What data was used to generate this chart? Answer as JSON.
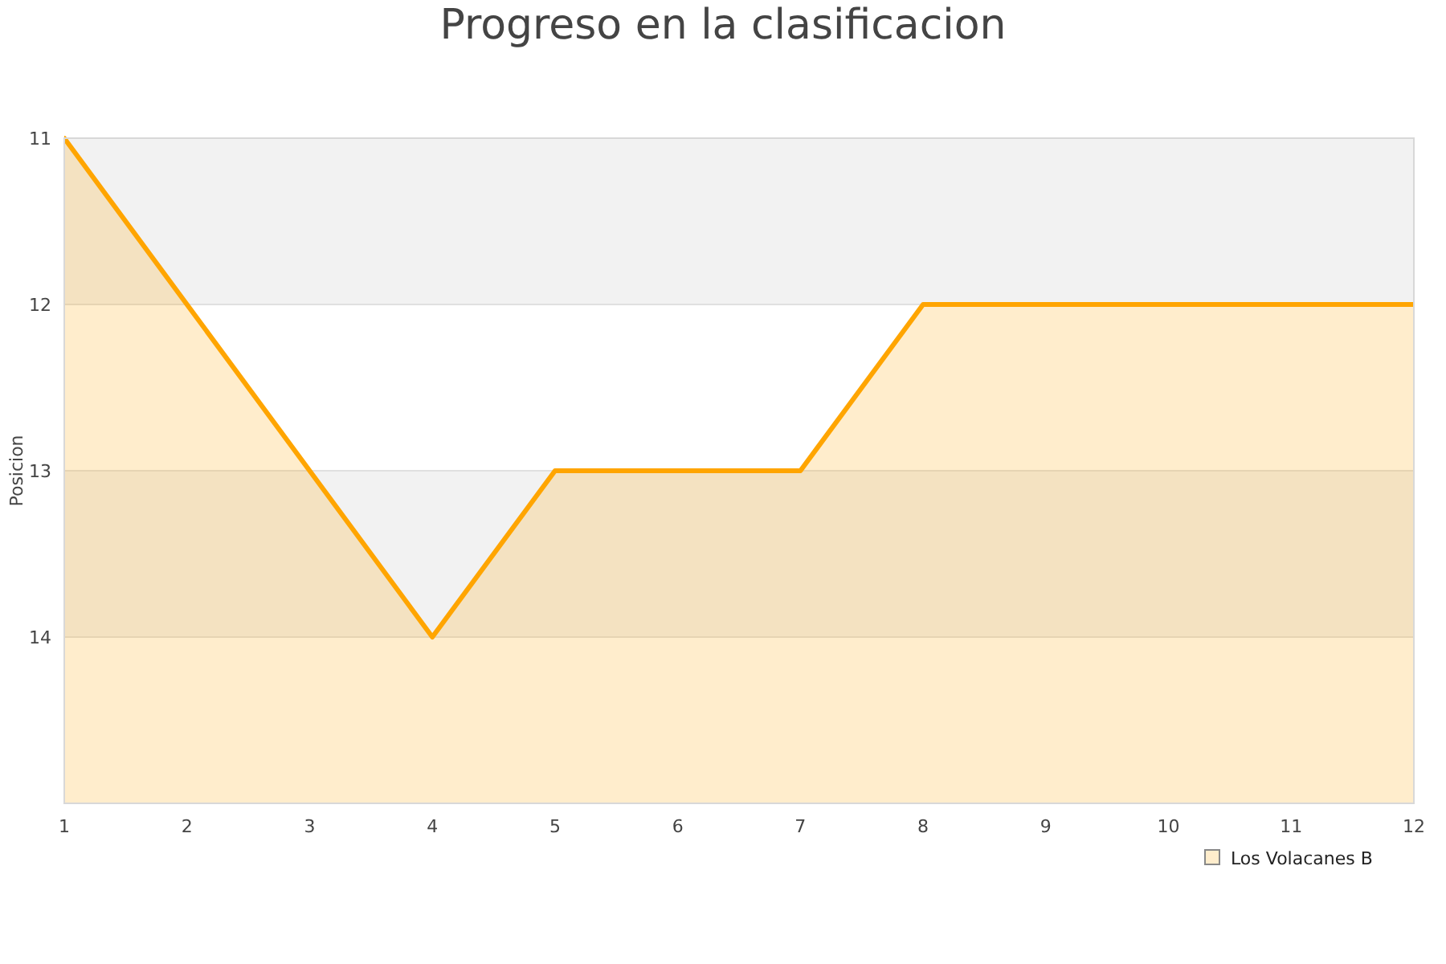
{
  "chart_data": {
    "type": "area",
    "title": "Progreso en la clasificacion",
    "ylabel": "Posicion",
    "x": [
      1,
      2,
      3,
      4,
      5,
      6,
      7,
      8,
      9,
      10,
      11,
      12
    ],
    "series": [
      {
        "name": "Los Volacanes B",
        "color": "#ffa500",
        "values": [
          11,
          12,
          13,
          14,
          13,
          13,
          13,
          12,
          12,
          12,
          12,
          12
        ]
      }
    ],
    "xlim": [
      1,
      12
    ],
    "xticks": [
      1,
      2,
      3,
      4,
      5,
      6,
      7,
      8,
      9,
      10,
      11,
      12
    ],
    "ylim": [
      15,
      11
    ],
    "yticks": [
      11,
      12,
      13,
      14
    ],
    "bands": [
      {
        "axis": "y",
        "from": 11,
        "to": 12,
        "color": "#f2f2f2"
      },
      {
        "axis": "y",
        "from": 13,
        "to": 14,
        "color": "#f2f2f2"
      }
    ],
    "grid": "y",
    "legend": "bottom right",
    "marker": "none"
  }
}
